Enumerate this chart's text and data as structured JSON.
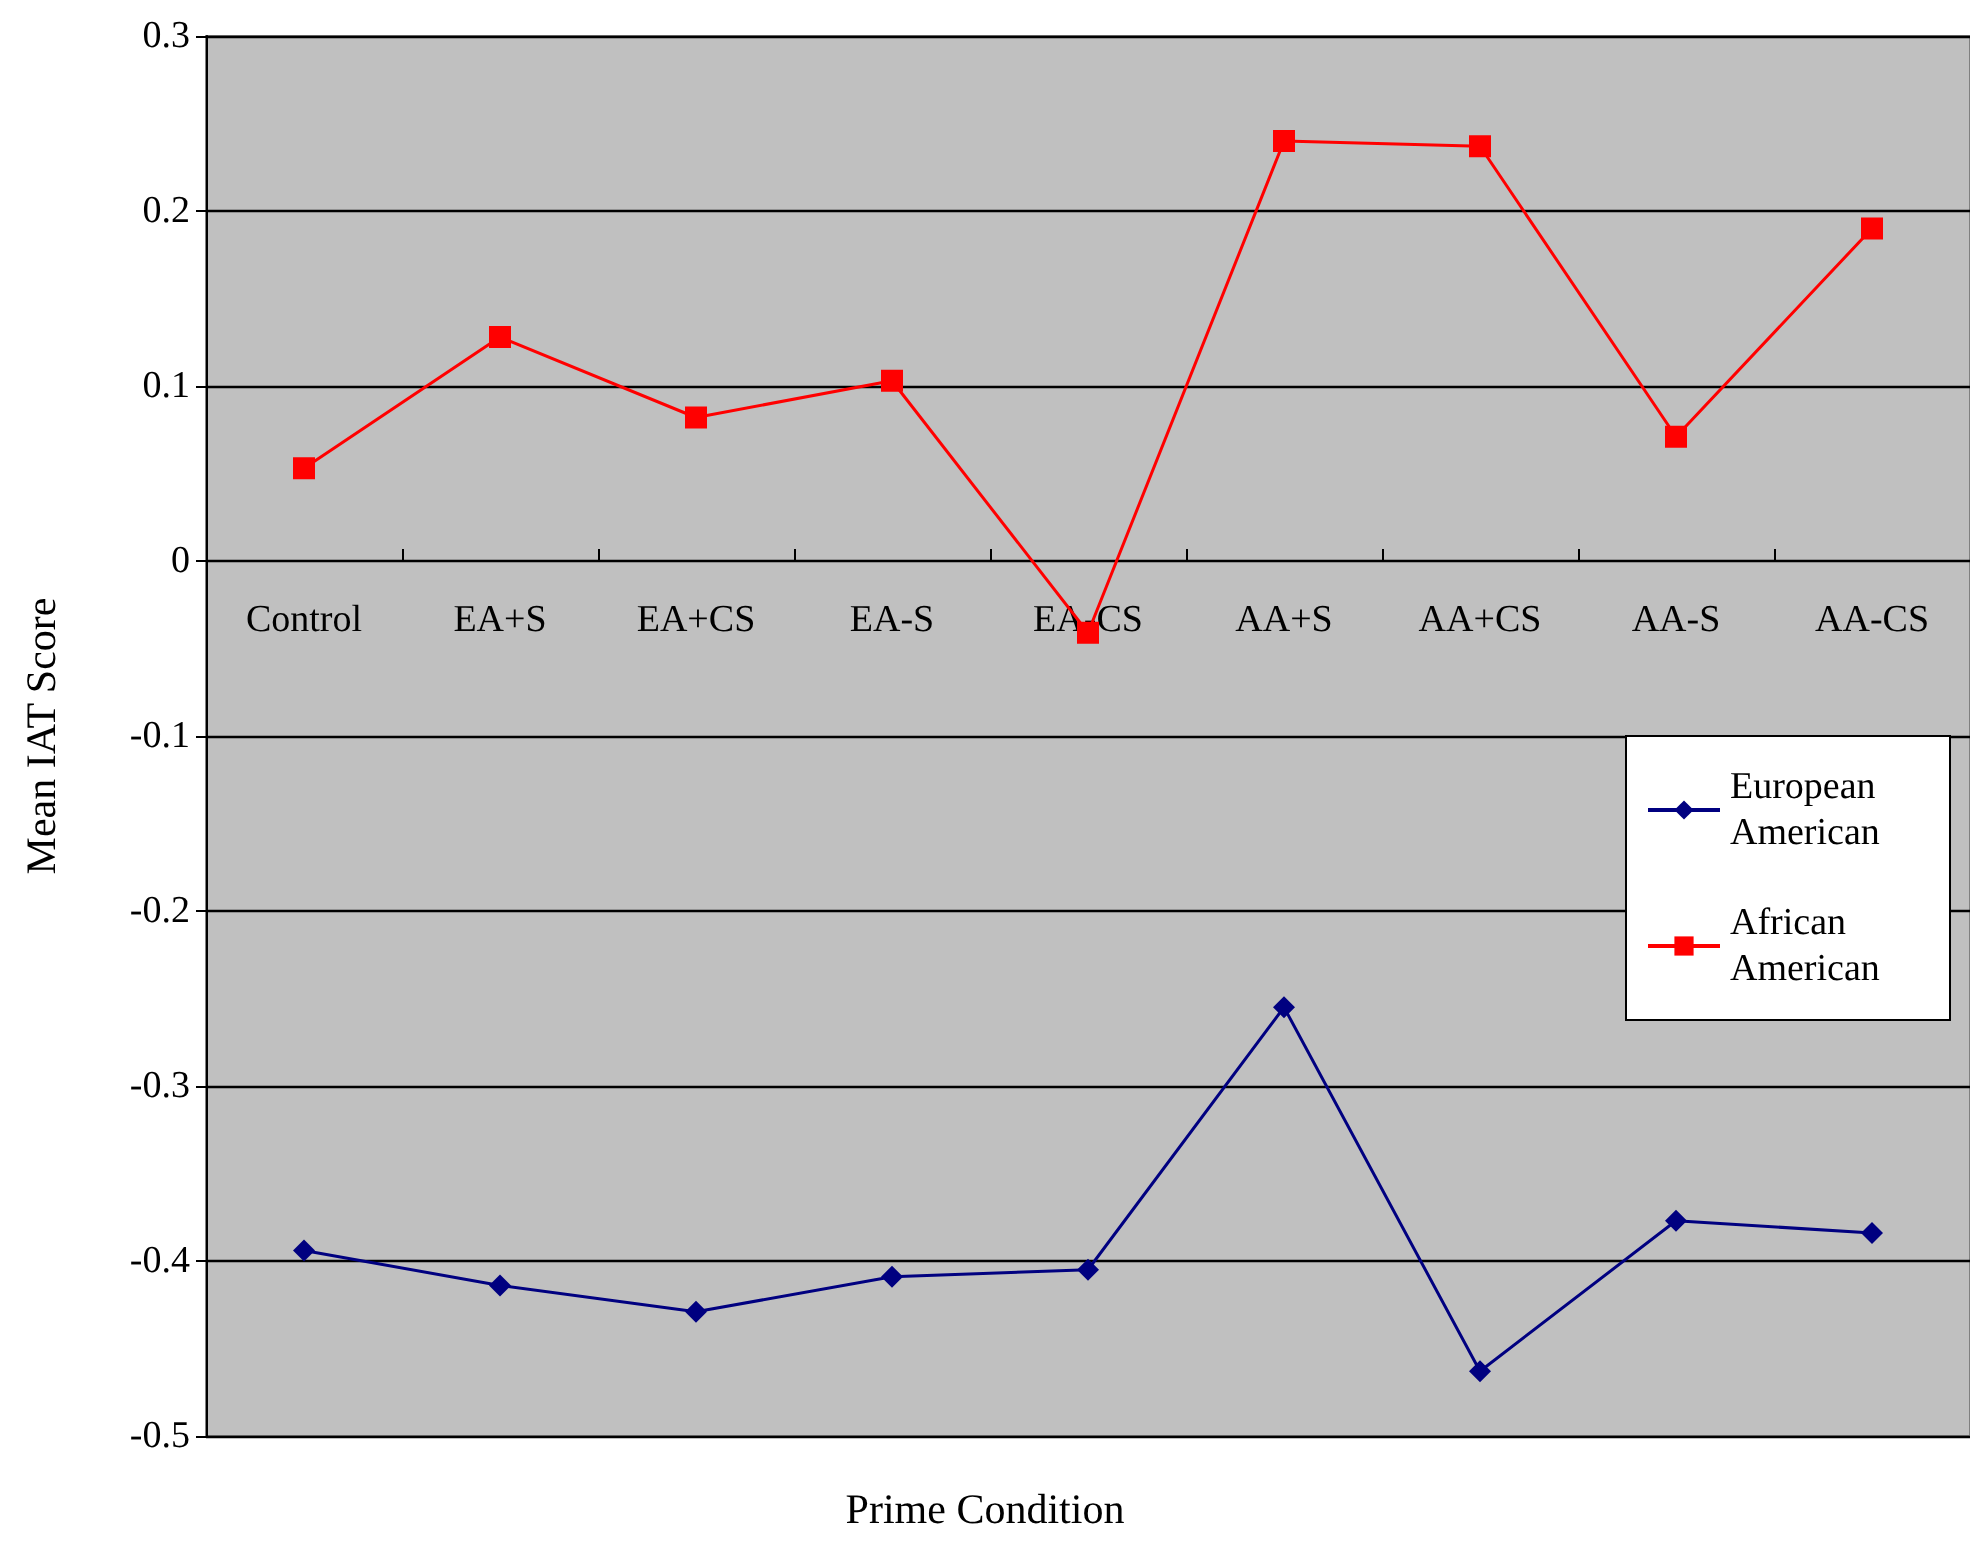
{
  "chart_data": {
    "type": "line",
    "xlabel": "Prime Condition",
    "ylabel": "Mean IAT Score",
    "categories": [
      "Control",
      "EA+S",
      "EA+CS",
      "EA-S",
      "EA-CS",
      "AA+S",
      "AA+CS",
      "AA-S",
      "AA-CS"
    ],
    "series": [
      {
        "name": "European American",
        "color": "#000080",
        "marker": "diamond",
        "values": [
          -0.394,
          -0.414,
          -0.429,
          -0.409,
          -0.405,
          -0.255,
          -0.463,
          -0.377,
          -0.384
        ]
      },
      {
        "name": "African American",
        "color": "#ff0000",
        "marker": "square",
        "values": [
          0.053,
          0.128,
          0.082,
          0.103,
          -0.041,
          0.24,
          0.237,
          0.071,
          0.19
        ]
      }
    ],
    "ylim": [
      -0.5,
      0.3
    ],
    "yticks": [
      -0.5,
      -0.4,
      -0.3,
      -0.2,
      -0.1,
      0,
      0.1,
      0.2,
      0.3
    ],
    "grid": "y",
    "legend": "right",
    "line_style": "solid"
  }
}
